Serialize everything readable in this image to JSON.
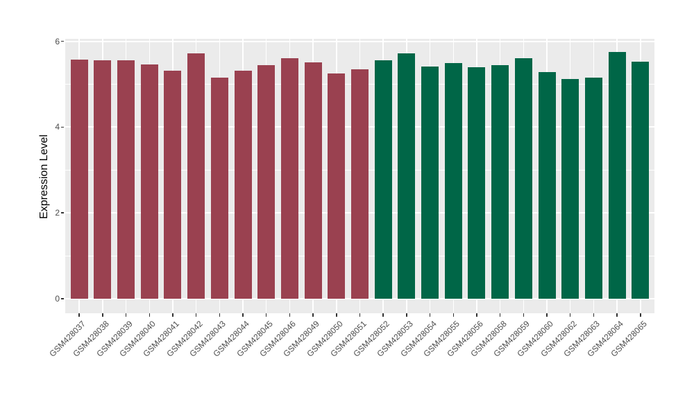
{
  "figure": {
    "background": "#FFFFFF",
    "panel_background": "#EBEBEB",
    "gridline_color": "#FFFFFF",
    "axis_text_color": "#4D4D4D",
    "tick_mark_color": "#333333",
    "axis_title_color": "#000000"
  },
  "chart_data": {
    "type": "bar",
    "title": "",
    "xlabel": "",
    "ylabel": "Expression Level",
    "ylim": [
      0,
      6.06
    ],
    "yticks_major": [
      0,
      2,
      4,
      6
    ],
    "yticks_minor": [
      1,
      3,
      5
    ],
    "grid": true,
    "legend_position": "none",
    "x_tick_rotation_deg": 45,
    "group_colors": {
      "group1": "#9A4150",
      "group2": "#006647"
    },
    "categories": [
      "GSM428037",
      "GSM428038",
      "GSM428039",
      "GSM428040",
      "GSM428041",
      "GSM428042",
      "GSM428043",
      "GSM428044",
      "GSM428045",
      "GSM428046",
      "GSM428049",
      "GSM428050",
      "GSM428051",
      "GSM428052",
      "GSM428053",
      "GSM428054",
      "GSM428055",
      "GSM428056",
      "GSM428058",
      "GSM428059",
      "GSM428060",
      "GSM428062",
      "GSM428063",
      "GSM428064",
      "GSM428065"
    ],
    "values": [
      5.58,
      5.55,
      5.55,
      5.46,
      5.32,
      5.72,
      5.16,
      5.32,
      5.44,
      5.6,
      5.51,
      5.25,
      5.35,
      5.55,
      5.72,
      5.42,
      5.5,
      5.4,
      5.45,
      5.6,
      5.29,
      5.12,
      5.15,
      5.75,
      5.52
    ],
    "groups": [
      "group1",
      "group1",
      "group1",
      "group1",
      "group1",
      "group1",
      "group1",
      "group1",
      "group1",
      "group1",
      "group1",
      "group1",
      "group1",
      "group2",
      "group2",
      "group2",
      "group2",
      "group2",
      "group2",
      "group2",
      "group2",
      "group2",
      "group2",
      "group2",
      "group2"
    ]
  }
}
